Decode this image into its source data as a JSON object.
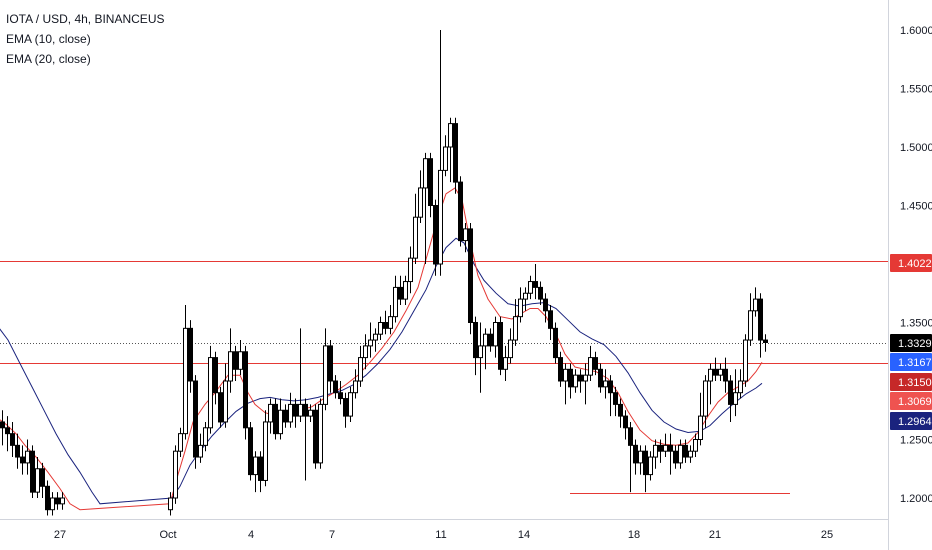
{
  "chart_data": {
    "type": "candlestick",
    "title": "IOTA / USD, 4h, BINANCEUS",
    "indicators": [
      {
        "name": "EMA (10, close)",
        "color": "#e53935"
      },
      {
        "name": "EMA (20, close)",
        "color": "#1a237e"
      }
    ],
    "x_tick_labels": [
      "27",
      "Oct",
      "4",
      "7",
      "11",
      "14",
      "18",
      "21",
      "25"
    ],
    "y_tick_labels": [
      "1.6000",
      "1.5500",
      "1.5000",
      "1.4500",
      "1.3500",
      "1.2500",
      "1.2000"
    ],
    "ylim": [
      1.185,
      1.625
    ],
    "grid": false,
    "price_tags": [
      {
        "label": "1.4022",
        "value": 1.4022,
        "color": "#e53935"
      },
      {
        "label": "1.3329",
        "value": 1.3329,
        "color": "#000000"
      },
      {
        "label": "1.3167",
        "value": 1.3167,
        "color": "#2962ff"
      },
      {
        "label": "1.3150",
        "value": 1.315,
        "color": "#c62828"
      },
      {
        "label": "1.3069",
        "value": 1.3069,
        "color": "#ef5350"
      },
      {
        "label": "1.2964",
        "value": 1.2964,
        "color": "#1a237e"
      }
    ],
    "horizontal_lines": [
      {
        "value": 1.4022,
        "color": "#e53935",
        "span": "full"
      },
      {
        "value": 1.315,
        "color": "#e53935",
        "span": "full"
      },
      {
        "value": 1.3329,
        "color": "#555555",
        "span": "full",
        "style": "dotted"
      },
      {
        "value": 1.204,
        "color": "#e53935",
        "span": "segment"
      }
    ],
    "ema10": [
      [
        -5,
        1.27
      ],
      [
        6,
        1.263
      ],
      [
        16,
        1.255
      ],
      [
        25,
        1.245
      ],
      [
        36,
        1.235
      ],
      [
        48,
        1.222
      ],
      [
        60,
        1.208
      ],
      [
        70,
        1.195
      ],
      [
        80,
        1.19
      ],
      [
        170,
        1.195
      ],
      [
        178,
        1.22
      ],
      [
        185,
        1.24
      ],
      [
        193,
        1.265
      ],
      [
        205,
        1.28
      ],
      [
        215,
        1.29
      ],
      [
        228,
        1.305
      ],
      [
        240,
        1.305
      ],
      [
        248,
        1.29
      ],
      [
        255,
        1.28
      ],
      [
        265,
        1.273
      ],
      [
        276,
        1.27
      ],
      [
        288,
        1.272
      ],
      [
        300,
        1.275
      ],
      [
        312,
        1.278
      ],
      [
        322,
        1.284
      ],
      [
        334,
        1.29
      ],
      [
        346,
        1.297
      ],
      [
        358,
        1.305
      ],
      [
        370,
        1.316
      ],
      [
        382,
        1.328
      ],
      [
        394,
        1.342
      ],
      [
        406,
        1.36
      ],
      [
        418,
        1.38
      ],
      [
        428,
        1.41
      ],
      [
        438,
        1.44
      ],
      [
        446,
        1.46
      ],
      [
        455,
        1.465
      ],
      [
        462,
        1.455
      ],
      [
        470,
        1.42
      ],
      [
        478,
        1.39
      ],
      [
        488,
        1.37
      ],
      [
        500,
        1.355
      ],
      [
        512,
        1.353
      ],
      [
        522,
        1.358
      ],
      [
        530,
        1.362
      ],
      [
        538,
        1.362
      ],
      [
        546,
        1.355
      ],
      [
        556,
        1.34
      ],
      [
        565,
        1.323
      ],
      [
        575,
        1.312
      ],
      [
        585,
        1.31
      ],
      [
        596,
        1.308
      ],
      [
        608,
        1.302
      ],
      [
        618,
        1.29
      ],
      [
        628,
        1.274
      ],
      [
        640,
        1.258
      ],
      [
        652,
        1.249
      ],
      [
        664,
        1.246
      ],
      [
        676,
        1.245
      ],
      [
        688,
        1.247
      ],
      [
        698,
        1.256
      ],
      [
        708,
        1.27
      ],
      [
        718,
        1.282
      ],
      [
        728,
        1.29
      ],
      [
        738,
        1.295
      ],
      [
        748,
        1.3
      ],
      [
        756,
        1.308
      ],
      [
        762,
        1.316
      ]
    ],
    "ema20": [
      [
        -5,
        1.35
      ],
      [
        8,
        1.335
      ],
      [
        20,
        1.315
      ],
      [
        32,
        1.295
      ],
      [
        44,
        1.275
      ],
      [
        56,
        1.255
      ],
      [
        68,
        1.237
      ],
      [
        80,
        1.222
      ],
      [
        92,
        1.205
      ],
      [
        100,
        1.195
      ],
      [
        172,
        1.2
      ],
      [
        180,
        1.21
      ],
      [
        190,
        1.228
      ],
      [
        200,
        1.24
      ],
      [
        212,
        1.253
      ],
      [
        224,
        1.264
      ],
      [
        236,
        1.274
      ],
      [
        248,
        1.281
      ],
      [
        260,
        1.285
      ],
      [
        270,
        1.286
      ],
      [
        282,
        1.284
      ],
      [
        294,
        1.283
      ],
      [
        306,
        1.284
      ],
      [
        318,
        1.286
      ],
      [
        330,
        1.289
      ],
      [
        342,
        1.292
      ],
      [
        354,
        1.297
      ],
      [
        366,
        1.305
      ],
      [
        378,
        1.315
      ],
      [
        390,
        1.327
      ],
      [
        402,
        1.342
      ],
      [
        414,
        1.36
      ],
      [
        426,
        1.378
      ],
      [
        436,
        1.398
      ],
      [
        446,
        1.414
      ],
      [
        456,
        1.422
      ],
      [
        464,
        1.418
      ],
      [
        474,
        1.4
      ],
      [
        484,
        1.386
      ],
      [
        496,
        1.375
      ],
      [
        508,
        1.366
      ],
      [
        520,
        1.364
      ],
      [
        532,
        1.366
      ],
      [
        544,
        1.367
      ],
      [
        556,
        1.362
      ],
      [
        568,
        1.352
      ],
      [
        580,
        1.342
      ],
      [
        592,
        1.336
      ],
      [
        604,
        1.331
      ],
      [
        616,
        1.321
      ],
      [
        628,
        1.307
      ],
      [
        640,
        1.29
      ],
      [
        652,
        1.275
      ],
      [
        664,
        1.265
      ],
      [
        676,
        1.259
      ],
      [
        688,
        1.256
      ],
      [
        700,
        1.257
      ],
      [
        710,
        1.262
      ],
      [
        722,
        1.272
      ],
      [
        734,
        1.281
      ],
      [
        746,
        1.289
      ],
      [
        756,
        1.294
      ],
      [
        762,
        1.298
      ]
    ],
    "candles": [
      [
        2,
        1.265,
        1.26,
        1.275,
        1.245
      ],
      [
        7,
        1.26,
        1.255,
        1.27,
        1.24
      ],
      [
        12,
        1.255,
        1.245,
        1.265,
        1.235
      ],
      [
        17,
        1.245,
        1.235,
        1.255,
        1.225
      ],
      [
        22,
        1.235,
        1.23,
        1.245,
        1.22
      ],
      [
        27,
        1.23,
        1.24,
        1.25,
        1.22
      ],
      [
        32,
        1.24,
        1.205,
        1.245,
        1.2
      ],
      [
        37,
        1.205,
        1.225,
        1.235,
        1.2
      ],
      [
        42,
        1.225,
        1.21,
        1.23,
        1.2
      ],
      [
        47,
        1.21,
        1.19,
        1.215,
        1.185
      ],
      [
        52,
        1.19,
        1.2,
        1.205,
        1.185
      ],
      [
        57,
        1.2,
        1.195,
        1.205,
        1.19
      ],
      [
        62,
        1.195,
        1.2,
        1.205,
        1.19
      ],
      [
        170,
        1.19,
        1.2,
        1.205,
        1.185
      ],
      [
        175,
        1.2,
        1.24,
        1.245,
        1.195
      ],
      [
        180,
        1.24,
        1.255,
        1.26,
        1.235
      ],
      [
        185,
        1.255,
        1.345,
        1.365,
        1.25
      ],
      [
        190,
        1.345,
        1.3,
        1.352,
        1.29
      ],
      [
        195,
        1.3,
        1.235,
        1.305,
        1.225
      ],
      [
        200,
        1.235,
        1.245,
        1.255,
        1.23
      ],
      [
        205,
        1.245,
        1.26,
        1.265,
        1.24
      ],
      [
        210,
        1.26,
        1.32,
        1.33,
        1.255
      ],
      [
        215,
        1.32,
        1.29,
        1.325,
        1.28
      ],
      [
        220,
        1.29,
        1.265,
        1.295,
        1.26
      ],
      [
        225,
        1.265,
        1.3,
        1.315,
        1.26
      ],
      [
        230,
        1.3,
        1.325,
        1.345,
        1.29
      ],
      [
        235,
        1.325,
        1.31,
        1.33,
        1.3
      ],
      [
        240,
        1.31,
        1.325,
        1.335,
        1.305
      ],
      [
        245,
        1.325,
        1.26,
        1.33,
        1.25
      ],
      [
        250,
        1.26,
        1.22,
        1.265,
        1.215
      ],
      [
        255,
        1.22,
        1.235,
        1.24,
        1.205
      ],
      [
        260,
        1.235,
        1.215,
        1.24,
        1.205
      ],
      [
        265,
        1.215,
        1.265,
        1.275,
        1.21
      ],
      [
        270,
        1.265,
        1.28,
        1.285,
        1.255
      ],
      [
        275,
        1.28,
        1.255,
        1.285,
        1.25
      ],
      [
        280,
        1.255,
        1.275,
        1.285,
        1.25
      ],
      [
        285,
        1.275,
        1.265,
        1.28,
        1.26
      ],
      [
        290,
        1.265,
        1.28,
        1.29,
        1.26
      ],
      [
        295,
        1.28,
        1.27,
        1.285,
        1.26
      ],
      [
        300,
        1.27,
        1.28,
        1.345,
        1.265
      ],
      [
        305,
        1.28,
        1.27,
        1.285,
        1.215
      ],
      [
        310,
        1.27,
        1.275,
        1.28,
        1.265
      ],
      [
        315,
        1.275,
        1.23,
        1.28,
        1.225
      ],
      [
        320,
        1.23,
        1.28,
        1.285,
        1.225
      ],
      [
        325,
        1.28,
        1.33,
        1.345,
        1.275
      ],
      [
        330,
        1.33,
        1.3,
        1.335,
        1.29
      ],
      [
        335,
        1.3,
        1.29,
        1.305,
        1.285
      ],
      [
        340,
        1.29,
        1.285,
        1.3,
        1.28
      ],
      [
        345,
        1.285,
        1.27,
        1.29,
        1.26
      ],
      [
        350,
        1.27,
        1.29,
        1.295,
        1.265
      ],
      [
        355,
        1.29,
        1.3,
        1.31,
        1.285
      ],
      [
        360,
        1.3,
        1.32,
        1.33,
        1.295
      ],
      [
        365,
        1.32,
        1.33,
        1.34,
        1.31
      ],
      [
        370,
        1.33,
        1.335,
        1.35,
        1.32
      ],
      [
        375,
        1.335,
        1.34,
        1.345,
        1.325
      ],
      [
        380,
        1.34,
        1.35,
        1.355,
        1.335
      ],
      [
        385,
        1.35,
        1.345,
        1.36,
        1.34
      ],
      [
        390,
        1.345,
        1.355,
        1.365,
        1.34
      ],
      [
        395,
        1.355,
        1.38,
        1.39,
        1.35
      ],
      [
        400,
        1.38,
        1.37,
        1.39,
        1.365
      ],
      [
        405,
        1.37,
        1.385,
        1.39,
        1.365
      ],
      [
        410,
        1.385,
        1.405,
        1.415,
        1.375
      ],
      [
        415,
        1.405,
        1.44,
        1.46,
        1.4
      ],
      [
        420,
        1.44,
        1.465,
        1.48,
        1.435
      ],
      [
        425,
        1.465,
        1.49,
        1.495,
        1.4
      ],
      [
        430,
        1.49,
        1.45,
        1.495,
        1.44
      ],
      [
        435,
        1.45,
        1.4,
        1.455,
        1.39
      ],
      [
        440,
        1.4,
        1.48,
        1.6,
        1.39
      ],
      [
        445,
        1.48,
        1.5,
        1.51,
        1.475
      ],
      [
        450,
        1.5,
        1.52,
        1.525,
        1.47
      ],
      [
        455,
        1.52,
        1.47,
        1.525,
        1.46
      ],
      [
        460,
        1.47,
        1.42,
        1.475,
        1.415
      ],
      [
        465,
        1.42,
        1.43,
        1.435,
        1.41
      ],
      [
        470,
        1.43,
        1.35,
        1.435,
        1.34
      ],
      [
        475,
        1.35,
        1.32,
        1.355,
        1.305
      ],
      [
        480,
        1.32,
        1.33,
        1.35,
        1.29
      ],
      [
        485,
        1.33,
        1.34,
        1.345,
        1.31
      ],
      [
        490,
        1.34,
        1.33,
        1.345,
        1.325
      ],
      [
        495,
        1.33,
        1.35,
        1.355,
        1.32
      ],
      [
        500,
        1.35,
        1.31,
        1.355,
        1.305
      ],
      [
        505,
        1.31,
        1.32,
        1.33,
        1.3
      ],
      [
        510,
        1.32,
        1.335,
        1.345,
        1.315
      ],
      [
        515,
        1.335,
        1.355,
        1.37,
        1.33
      ],
      [
        520,
        1.355,
        1.37,
        1.38,
        1.35
      ],
      [
        525,
        1.37,
        1.375,
        1.38,
        1.36
      ],
      [
        530,
        1.375,
        1.385,
        1.39,
        1.37
      ],
      [
        535,
        1.385,
        1.38,
        1.4,
        1.37
      ],
      [
        540,
        1.38,
        1.37,
        1.385,
        1.365
      ],
      [
        545,
        1.37,
        1.36,
        1.375,
        1.35
      ],
      [
        550,
        1.36,
        1.345,
        1.365,
        1.335
      ],
      [
        555,
        1.345,
        1.32,
        1.35,
        1.315
      ],
      [
        560,
        1.32,
        1.3,
        1.325,
        1.295
      ],
      [
        565,
        1.3,
        1.31,
        1.315,
        1.28
      ],
      [
        570,
        1.31,
        1.295,
        1.315,
        1.285
      ],
      [
        575,
        1.295,
        1.305,
        1.31,
        1.29
      ],
      [
        580,
        1.305,
        1.3,
        1.31,
        1.29
      ],
      [
        585,
        1.3,
        1.305,
        1.315,
        1.28
      ],
      [
        590,
        1.305,
        1.32,
        1.33,
        1.3
      ],
      [
        595,
        1.32,
        1.31,
        1.325,
        1.305
      ],
      [
        600,
        1.31,
        1.295,
        1.315,
        1.29
      ],
      [
        605,
        1.295,
        1.3,
        1.31,
        1.285
      ],
      [
        610,
        1.3,
        1.29,
        1.305,
        1.27
      ],
      [
        615,
        1.29,
        1.28,
        1.295,
        1.27
      ],
      [
        620,
        1.28,
        1.27,
        1.285,
        1.26
      ],
      [
        625,
        1.27,
        1.26,
        1.275,
        1.25
      ],
      [
        630,
        1.26,
        1.245,
        1.265,
        1.205
      ],
      [
        635,
        1.245,
        1.23,
        1.25,
        1.22
      ],
      [
        640,
        1.23,
        1.24,
        1.245,
        1.22
      ],
      [
        645,
        1.24,
        1.22,
        1.245,
        1.205
      ],
      [
        650,
        1.22,
        1.235,
        1.24,
        1.215
      ],
      [
        655,
        1.235,
        1.245,
        1.25,
        1.225
      ],
      [
        660,
        1.245,
        1.24,
        1.25,
        1.23
      ],
      [
        665,
        1.24,
        1.245,
        1.255,
        1.235
      ],
      [
        670,
        1.245,
        1.24,
        1.255,
        1.22
      ],
      [
        675,
        1.24,
        1.23,
        1.245,
        1.225
      ],
      [
        680,
        1.23,
        1.245,
        1.25,
        1.225
      ],
      [
        685,
        1.245,
        1.235,
        1.25,
        1.23
      ],
      [
        690,
        1.235,
        1.24,
        1.245,
        1.23
      ],
      [
        695,
        1.24,
        1.25,
        1.255,
        1.235
      ],
      [
        700,
        1.25,
        1.27,
        1.29,
        1.245
      ],
      [
        705,
        1.27,
        1.3,
        1.305,
        1.26
      ],
      [
        710,
        1.3,
        1.31,
        1.315,
        1.28
      ],
      [
        715,
        1.31,
        1.305,
        1.32,
        1.3
      ],
      [
        720,
        1.305,
        1.31,
        1.315,
        1.3
      ],
      [
        725,
        1.31,
        1.3,
        1.32,
        1.29
      ],
      [
        730,
        1.3,
        1.28,
        1.305,
        1.265
      ],
      [
        735,
        1.28,
        1.29,
        1.31,
        1.27
      ],
      [
        740,
        1.29,
        1.3,
        1.31,
        1.285
      ],
      [
        745,
        1.3,
        1.335,
        1.34,
        1.295
      ],
      [
        750,
        1.335,
        1.36,
        1.375,
        1.33
      ],
      [
        755,
        1.36,
        1.37,
        1.38,
        1.355
      ],
      [
        760,
        1.37,
        1.335,
        1.375,
        1.32
      ],
      [
        765,
        1.335,
        1.3329,
        1.34,
        1.325
      ]
    ]
  }
}
